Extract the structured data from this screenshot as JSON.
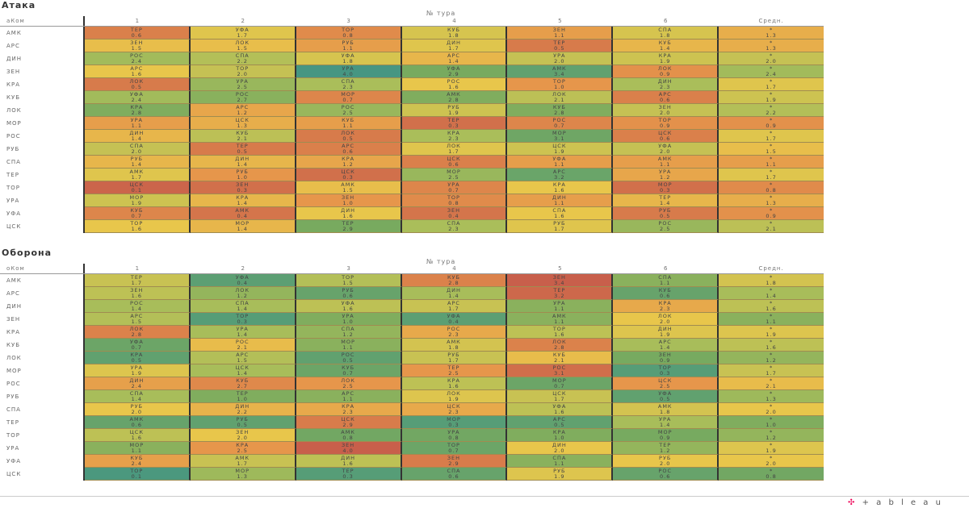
{
  "chart_data": [
    {
      "type": "heatmap",
      "title": "Атака",
      "corner_label": "аКом",
      "column_group_label": "№ тура",
      "columns": [
        "1",
        "2",
        "3",
        "4",
        "5",
        "6"
      ],
      "avg_label": "Средн.",
      "avg_marker": "*",
      "scale": "higher-better",
      "rows": [
        {
          "team": "АМК",
          "cells": [
            [
              "ТЕР",
              "0.6"
            ],
            [
              "УФА",
              "1.7"
            ],
            [
              "ТОР",
              "0.8"
            ],
            [
              "КУБ",
              "1.8"
            ],
            [
              "ЗЕН",
              "1.1"
            ],
            [
              "СПА",
              "1.8"
            ]
          ],
          "avg": "1.3"
        },
        {
          "team": "АРС",
          "cells": [
            [
              "ЗЕН",
              "1.5"
            ],
            [
              "ЛОК",
              "1.5"
            ],
            [
              "РУБ",
              "1.1"
            ],
            [
              "ДИН",
              "1.7"
            ],
            [
              "ТЕР",
              "0.5"
            ],
            [
              "КУБ",
              "1.4"
            ]
          ],
          "avg": "1.3"
        },
        {
          "team": "ДИН",
          "cells": [
            [
              "РОС",
              "2.4"
            ],
            [
              "СПА",
              "2.2"
            ],
            [
              "УФА",
              "1.8"
            ],
            [
              "АРС",
              "1.4"
            ],
            [
              "УРА",
              "2.0"
            ],
            [
              "КРА",
              "1.9"
            ]
          ],
          "avg": "2.0"
        },
        {
          "team": "ЗЕН",
          "cells": [
            [
              "АРС",
              "1.6"
            ],
            [
              "ТОР",
              "2.0"
            ],
            [
              "УРА",
              "4.0"
            ],
            [
              "УФА",
              "2.9"
            ],
            [
              "АМК",
              "3.4"
            ],
            [
              "ЛОК",
              "0.9"
            ]
          ],
          "avg": "2.4"
        },
        {
          "team": "КРА",
          "cells": [
            [
              "ЛОК",
              "0.5"
            ],
            [
              "УРА",
              "2.5"
            ],
            [
              "СПА",
              "2.3"
            ],
            [
              "РОС",
              "1.6"
            ],
            [
              "ТОР",
              "1.0"
            ],
            [
              "ДИН",
              "2.3"
            ]
          ],
          "avg": "1.7"
        },
        {
          "team": "КУБ",
          "cells": [
            [
              "УФА",
              "2.4"
            ],
            [
              "РОС",
              "2.7"
            ],
            [
              "МОР",
              "0.7"
            ],
            [
              "АМК",
              "2.8"
            ],
            [
              "ЛОК",
              "2.1"
            ],
            [
              "АРС",
              "0.6"
            ]
          ],
          "avg": "1.9"
        },
        {
          "team": "ЛОК",
          "cells": [
            [
              "КРА",
              "2.8"
            ],
            [
              "АРС",
              "1.2"
            ],
            [
              "РОС",
              "2.5"
            ],
            [
              "РУБ",
              "1.9"
            ],
            [
              "КУБ",
              "2.8"
            ],
            [
              "ЗЕН",
              "2.0"
            ]
          ],
          "avg": "2.2"
        },
        {
          "team": "МОР",
          "cells": [
            [
              "УРА",
              "1.1"
            ],
            [
              "ЦСК",
              "1.3"
            ],
            [
              "КУБ",
              "1.1"
            ],
            [
              "ТЕР",
              "0.3"
            ],
            [
              "РОС",
              "0.7"
            ],
            [
              "ТОР",
              "0.9"
            ]
          ],
          "avg": "0.9"
        },
        {
          "team": "РОС",
          "cells": [
            [
              "ДИН",
              "1.4"
            ],
            [
              "КУБ",
              "2.1"
            ],
            [
              "ЛОК",
              "0.5"
            ],
            [
              "КРА",
              "2.3"
            ],
            [
              "МОР",
              "3.1"
            ],
            [
              "ЦСК",
              "0.6"
            ]
          ],
          "avg": "1.7"
        },
        {
          "team": "РУБ",
          "cells": [
            [
              "СПА",
              "2.0"
            ],
            [
              "ТЕР",
              "0.5"
            ],
            [
              "АРС",
              "0.6"
            ],
            [
              "ЛОК",
              "1.7"
            ],
            [
              "ЦСК",
              "1.9"
            ],
            [
              "УФА",
              "2.0"
            ]
          ],
          "avg": "1.5"
        },
        {
          "team": "СПА",
          "cells": [
            [
              "РУБ",
              "1.4"
            ],
            [
              "ДИН",
              "1.4"
            ],
            [
              "КРА",
              "1.2"
            ],
            [
              "ЦСК",
              "0.6"
            ],
            [
              "УФА",
              "1.1"
            ],
            [
              "АМК",
              "1.1"
            ]
          ],
          "avg": "1.1"
        },
        {
          "team": "ТЕР",
          "cells": [
            [
              "АМК",
              "1.7"
            ],
            [
              "РУБ",
              "1.0"
            ],
            [
              "ЦСК",
              "0.3"
            ],
            [
              "МОР",
              "2.5"
            ],
            [
              "АРС",
              "3.2"
            ],
            [
              "УРА",
              "1.2"
            ]
          ],
          "avg": "1.7"
        },
        {
          "team": "ТОР",
          "cells": [
            [
              "ЦСК",
              "0.1"
            ],
            [
              "ЗЕН",
              "0.3"
            ],
            [
              "АМК",
              "1.5"
            ],
            [
              "УРА",
              "0.7"
            ],
            [
              "КРА",
              "1.6"
            ],
            [
              "МОР",
              "0.3"
            ]
          ],
          "avg": "0.8"
        },
        {
          "team": "УРА",
          "cells": [
            [
              "МОР",
              "1.9"
            ],
            [
              "КРА",
              "1.4"
            ],
            [
              "ЗЕН",
              "1.0"
            ],
            [
              "ТОР",
              "0.8"
            ],
            [
              "ДИН",
              "1.1"
            ],
            [
              "ТЕР",
              "1.4"
            ]
          ],
          "avg": "1.3"
        },
        {
          "team": "УФА",
          "cells": [
            [
              "КУБ",
              "0.7"
            ],
            [
              "АМК",
              "0.4"
            ],
            [
              "ДИН",
              "1.6"
            ],
            [
              "ЗЕН",
              "0.4"
            ],
            [
              "СПА",
              "1.6"
            ],
            [
              "РУБ",
              "0.5"
            ]
          ],
          "avg": "0.9"
        },
        {
          "team": "ЦСК",
          "cells": [
            [
              "ТОР",
              "1.6"
            ],
            [
              "МОР",
              "1.4"
            ],
            [
              "ТЕР",
              "2.9"
            ],
            [
              "СПА",
              "2.3"
            ],
            [
              "РУБ",
              "1.7"
            ],
            [
              "РОС",
              "2.5"
            ]
          ],
          "avg": "2.1"
        }
      ]
    },
    {
      "type": "heatmap",
      "title": "Оборона",
      "corner_label": "оКом",
      "column_group_label": "№ тура",
      "columns": [
        "1",
        "2",
        "3",
        "4",
        "5",
        "6"
      ],
      "avg_label": "Средн.",
      "avg_marker": "*",
      "scale": "lower-better",
      "rows": [
        {
          "team": "АМК",
          "cells": [
            [
              "ТЕР",
              "1.7"
            ],
            [
              "УФА",
              "0.4"
            ],
            [
              "ТОР",
              "1.5"
            ],
            [
              "КУБ",
              "2.8"
            ],
            [
              "ЗЕН",
              "3.4"
            ],
            [
              "СПА",
              "1.1"
            ]
          ],
          "avg": "1.8"
        },
        {
          "team": "АРС",
          "cells": [
            [
              "ЗЕН",
              "1.6"
            ],
            [
              "ЛОК",
              "1.2"
            ],
            [
              "РУБ",
              "0.6"
            ],
            [
              "ДИН",
              "1.4"
            ],
            [
              "ТЕР",
              "3.2"
            ],
            [
              "КУБ",
              "0.6"
            ]
          ],
          "avg": "1.4"
        },
        {
          "team": "ДИН",
          "cells": [
            [
              "РОС",
              "1.4"
            ],
            [
              "СПА",
              "1.4"
            ],
            [
              "УФА",
              "1.6"
            ],
            [
              "АРС",
              "1.7"
            ],
            [
              "УРА",
              "1.1"
            ],
            [
              "КРА",
              "2.3"
            ]
          ],
          "avg": "1.6"
        },
        {
          "team": "ЗЕН",
          "cells": [
            [
              "АРС",
              "1.5"
            ],
            [
              "ТОР",
              "0.3"
            ],
            [
              "УРА",
              "1.0"
            ],
            [
              "УФА",
              "0.4"
            ],
            [
              "АМК",
              "1.1"
            ],
            [
              "ЛОК",
              "2.0"
            ]
          ],
          "avg": "1.1"
        },
        {
          "team": "КРА",
          "cells": [
            [
              "ЛОК",
              "2.8"
            ],
            [
              "УРА",
              "1.4"
            ],
            [
              "СПА",
              "1.2"
            ],
            [
              "РОС",
              "2.3"
            ],
            [
              "ТОР",
              "1.6"
            ],
            [
              "ДИН",
              "1.9"
            ]
          ],
          "avg": "1.9"
        },
        {
          "team": "КУБ",
          "cells": [
            [
              "УФА",
              "0.7"
            ],
            [
              "РОС",
              "2.1"
            ],
            [
              "МОР",
              "1.1"
            ],
            [
              "АМК",
              "1.8"
            ],
            [
              "ЛОК",
              "2.8"
            ],
            [
              "АРС",
              "1.4"
            ]
          ],
          "avg": "1.6"
        },
        {
          "team": "ЛОК",
          "cells": [
            [
              "КРА",
              "0.5"
            ],
            [
              "АРС",
              "1.5"
            ],
            [
              "РОС",
              "0.5"
            ],
            [
              "РУБ",
              "1.7"
            ],
            [
              "КУБ",
              "2.1"
            ],
            [
              "ЗЕН",
              "0.9"
            ]
          ],
          "avg": "1.2"
        },
        {
          "team": "МОР",
          "cells": [
            [
              "УРА",
              "1.9"
            ],
            [
              "ЦСК",
              "1.4"
            ],
            [
              "КУБ",
              "0.7"
            ],
            [
              "ТЕР",
              "2.5"
            ],
            [
              "РОС",
              "3.1"
            ],
            [
              "ТОР",
              "0.3"
            ]
          ],
          "avg": "1.7"
        },
        {
          "team": "РОС",
          "cells": [
            [
              "ДИН",
              "2.4"
            ],
            [
              "КУБ",
              "2.7"
            ],
            [
              "ЛОК",
              "2.5"
            ],
            [
              "КРА",
              "1.6"
            ],
            [
              "МОР",
              "0.7"
            ],
            [
              "ЦСК",
              "2.5"
            ]
          ],
          "avg": "2.1"
        },
        {
          "team": "РУБ",
          "cells": [
            [
              "СПА",
              "1.4"
            ],
            [
              "ТЕР",
              "1.0"
            ],
            [
              "АРС",
              "1.1"
            ],
            [
              "ЛОК",
              "1.9"
            ],
            [
              "ЦСК",
              "1.7"
            ],
            [
              "УФА",
              "0.5"
            ]
          ],
          "avg": "1.3"
        },
        {
          "team": "СПА",
          "cells": [
            [
              "РУБ",
              "2.0"
            ],
            [
              "ДИН",
              "2.2"
            ],
            [
              "КРА",
              "2.3"
            ],
            [
              "ЦСК",
              "2.3"
            ],
            [
              "УФА",
              "1.6"
            ],
            [
              "АМК",
              "1.8"
            ]
          ],
          "avg": "2.0"
        },
        {
          "team": "ТЕР",
          "cells": [
            [
              "АМК",
              "0.6"
            ],
            [
              "РУБ",
              "0.5"
            ],
            [
              "ЦСК",
              "2.9"
            ],
            [
              "МОР",
              "0.3"
            ],
            [
              "АРС",
              "0.5"
            ],
            [
              "УРА",
              "1.4"
            ]
          ],
          "avg": "1.0"
        },
        {
          "team": "ТОР",
          "cells": [
            [
              "ЦСК",
              "1.6"
            ],
            [
              "ЗЕН",
              "2.0"
            ],
            [
              "АМК",
              "0.8"
            ],
            [
              "УРА",
              "0.8"
            ],
            [
              "КРА",
              "1.0"
            ],
            [
              "МОР",
              "0.9"
            ]
          ],
          "avg": "1.2"
        },
        {
          "team": "УРА",
          "cells": [
            [
              "МОР",
              "1.1"
            ],
            [
              "КРА",
              "2.5"
            ],
            [
              "ЗЕН",
              "4.0"
            ],
            [
              "ТОР",
              "0.7"
            ],
            [
              "ДИН",
              "2.0"
            ],
            [
              "ТЕР",
              "1.2"
            ]
          ],
          "avg": "1.9"
        },
        {
          "team": "УФА",
          "cells": [
            [
              "КУБ",
              "2.4"
            ],
            [
              "АМК",
              "1.7"
            ],
            [
              "ДИН",
              "1.6"
            ],
            [
              "ЗЕН",
              "2.9"
            ],
            [
              "СПА",
              "1.1"
            ],
            [
              "РУБ",
              "2.0"
            ]
          ],
          "avg": "2.0"
        },
        {
          "team": "ЦСК",
          "cells": [
            [
              "ТОР",
              "0.1"
            ],
            [
              "МОР",
              "1.3"
            ],
            [
              "ТЕР",
              "0.3"
            ],
            [
              "СПА",
              "0.6"
            ],
            [
              "РУБ",
              "1.9"
            ],
            [
              "РОС",
              "0.6"
            ]
          ],
          "avg": "0.8"
        }
      ]
    }
  ],
  "footer": {
    "logo": "+ a b l e a u"
  }
}
